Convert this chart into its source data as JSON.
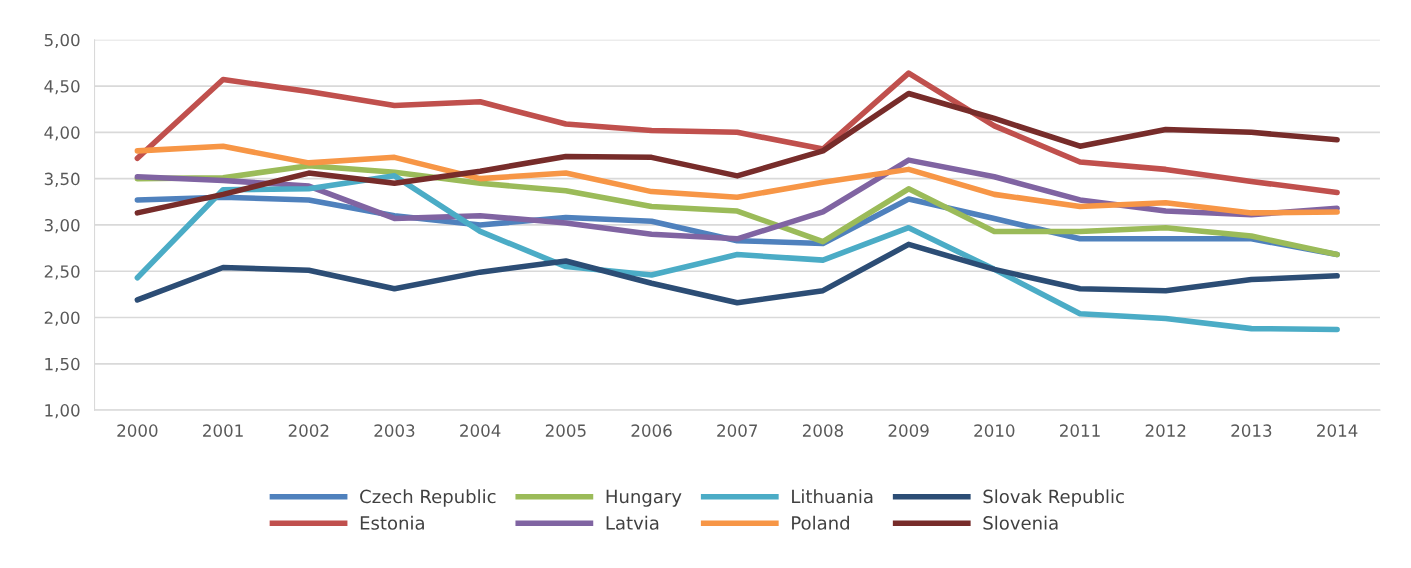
{
  "chart_data": {
    "type": "line",
    "categories": [
      "2000",
      "2001",
      "2002",
      "2003",
      "2004",
      "2005",
      "2006",
      "2007",
      "2008",
      "2009",
      "2010",
      "2011",
      "2012",
      "2013",
      "2014"
    ],
    "series": [
      {
        "name": "Czech Republic",
        "color": "#4f81bd",
        "values": [
          3.27,
          3.3,
          3.27,
          3.1,
          3.0,
          3.08,
          3.04,
          2.83,
          2.8,
          3.28,
          3.07,
          2.85,
          2.85,
          2.85,
          2.68
        ]
      },
      {
        "name": "Estonia",
        "color": "#c0504d",
        "values": [
          3.72,
          4.57,
          4.44,
          4.29,
          4.33,
          4.09,
          4.02,
          4.0,
          3.82,
          4.64,
          4.07,
          3.68,
          3.6,
          3.47,
          3.35
        ]
      },
      {
        "name": "Hungary",
        "color": "#9bbb59",
        "values": [
          3.5,
          3.51,
          3.64,
          3.57,
          3.45,
          3.37,
          3.2,
          3.15,
          2.82,
          3.39,
          2.93,
          2.93,
          2.97,
          2.88,
          2.68
        ]
      },
      {
        "name": "Latvia",
        "color": "#8064a2",
        "values": [
          3.52,
          3.48,
          3.42,
          3.07,
          3.1,
          3.02,
          2.9,
          2.85,
          3.14,
          3.7,
          3.52,
          3.27,
          3.15,
          3.11,
          3.18
        ]
      },
      {
        "name": "Lithuania",
        "color": "#4bacc6",
        "values": [
          2.43,
          3.38,
          3.39,
          3.53,
          2.93,
          2.55,
          2.46,
          2.68,
          2.62,
          2.97,
          2.52,
          2.04,
          1.99,
          1.88,
          1.87
        ]
      },
      {
        "name": "Poland",
        "color": "#f79646",
        "values": [
          3.8,
          3.85,
          3.67,
          3.73,
          3.5,
          3.56,
          3.36,
          3.3,
          3.46,
          3.6,
          3.33,
          3.2,
          3.24,
          3.13,
          3.14
        ]
      },
      {
        "name": "Slovak Republic",
        "color": "#2c4d75",
        "values": [
          2.19,
          2.54,
          2.51,
          2.31,
          2.49,
          2.61,
          2.37,
          2.16,
          2.29,
          2.79,
          2.52,
          2.31,
          2.29,
          2.41,
          2.45
        ]
      },
      {
        "name": "Slovenia",
        "color": "#772c2a",
        "values": [
          3.13,
          3.33,
          3.56,
          3.45,
          3.58,
          3.74,
          3.73,
          3.53,
          3.8,
          4.42,
          4.15,
          3.85,
          4.03,
          4.0,
          3.92
        ]
      }
    ],
    "ylim": [
      1,
      5
    ],
    "yticks": [
      {
        "value": 1,
        "label": "1,00"
      },
      {
        "value": 1.5,
        "label": "1,50"
      },
      {
        "value": 2,
        "label": "2,00"
      },
      {
        "value": 2.5,
        "label": "2,50"
      },
      {
        "value": 3,
        "label": "3,00"
      },
      {
        "value": 3.5,
        "label": "3,50"
      },
      {
        "value": 4,
        "label": "4,00"
      },
      {
        "value": 4.5,
        "label": "4,50"
      },
      {
        "value": 5,
        "label": "5,00"
      }
    ],
    "grid": "y",
    "legend": "bottom",
    "marker": "none",
    "line_style": "solid"
  }
}
